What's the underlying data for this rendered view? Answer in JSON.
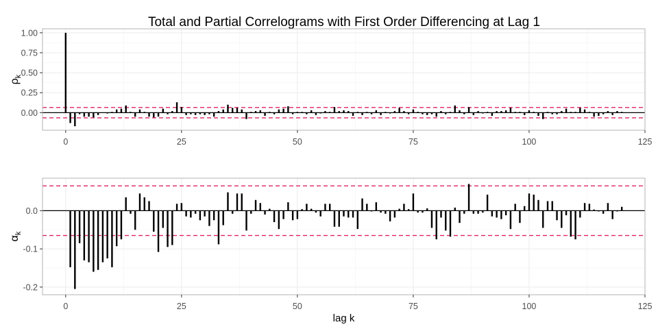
{
  "title": "Total and Partial Correlograms with First Order Differencing at Lag 1",
  "colors": {
    "bar": "#000000",
    "band": "#e0245e",
    "zero": "#000000",
    "grid": "#ebebeb",
    "panel_border": "#b3b3b3",
    "text": "#4d4d4d",
    "title": "#000000"
  },
  "chart_data": [
    {
      "type": "bar",
      "panel": "top",
      "ylabel": "ρ",
      "ylabel_sub": "k",
      "xlabel": "",
      "xlim": [
        -5,
        125
      ],
      "ylim": [
        -0.22,
        1.05
      ],
      "xticks": [
        0,
        25,
        50,
        75,
        100,
        125
      ],
      "yticks": [
        0.0,
        0.25,
        0.5,
        0.75,
        1.0
      ],
      "ytick_labels": [
        "0.00",
        "0.25",
        "0.50",
        "0.75",
        "1.00"
      ],
      "band": 0.065,
      "grid": true,
      "x": [
        0,
        1,
        2,
        3,
        4,
        5,
        6,
        7,
        8,
        9,
        10,
        11,
        12,
        13,
        14,
        15,
        16,
        17,
        18,
        19,
        20,
        21,
        22,
        23,
        24,
        25,
        26,
        27,
        28,
        29,
        30,
        31,
        32,
        33,
        34,
        35,
        36,
        37,
        38,
        39,
        40,
        41,
        42,
        43,
        44,
        45,
        46,
        47,
        48,
        49,
        50,
        51,
        52,
        53,
        54,
        55,
        56,
        57,
        58,
        59,
        60,
        61,
        62,
        63,
        64,
        65,
        66,
        67,
        68,
        69,
        70,
        71,
        72,
        73,
        74,
        75,
        76,
        77,
        78,
        79,
        80,
        81,
        82,
        83,
        84,
        85,
        86,
        87,
        88,
        89,
        90,
        91,
        92,
        93,
        94,
        95,
        96,
        97,
        98,
        99,
        100,
        101,
        102,
        103,
        104,
        105,
        106,
        107,
        108,
        109,
        110,
        111,
        112,
        113,
        114,
        115,
        116,
        117,
        118,
        119,
        120
      ],
      "values": [
        1.0,
        -0.13,
        -0.17,
        -0.02,
        -0.05,
        -0.05,
        -0.06,
        -0.03,
        0.0,
        -0.01,
        0.01,
        0.04,
        0.05,
        0.09,
        0.01,
        -0.05,
        0.04,
        0.01,
        -0.05,
        -0.06,
        -0.05,
        0.05,
        -0.02,
        0.02,
        0.13,
        0.07,
        -0.03,
        -0.02,
        -0.03,
        -0.02,
        -0.03,
        -0.02,
        -0.05,
        0.02,
        0.04,
        0.1,
        0.06,
        0.06,
        0.04,
        -0.08,
        0.01,
        0.02,
        0.03,
        -0.04,
        0.01,
        -0.02,
        0.04,
        0.05,
        0.08,
        -0.02,
        0.01,
        0.01,
        -0.02,
        0.03,
        -0.03,
        -0.01,
        0.02,
        0.01,
        0.07,
        0.02,
        0.03,
        0.02,
        -0.04,
        0.01,
        -0.03,
        0.01,
        -0.02,
        0.03,
        -0.03,
        0.01,
        -0.01,
        0.02,
        0.06,
        0.02,
        -0.02,
        0.04,
        0.01,
        -0.02,
        -0.03,
        -0.02,
        -0.05,
        0.02,
        -0.02,
        0.01,
        0.09,
        0.03,
        -0.02,
        0.07,
        -0.03,
        0.02,
        -0.01,
        0.01,
        -0.04,
        0.02,
        0.02,
        0.03,
        0.06,
        0.01,
        0.01,
        -0.03,
        0.03,
        0.01,
        -0.04,
        -0.08,
        0.01,
        -0.02,
        -0.02,
        0.02,
        0.05,
        0.01,
        0.01,
        0.06,
        0.04,
        0.01,
        -0.05,
        -0.04,
        -0.02,
        0.02,
        -0.03,
        0.02,
        0.01
      ]
    },
    {
      "type": "bar",
      "panel": "bottom",
      "ylabel": "α",
      "ylabel_sub": "k",
      "xlabel": "lag k",
      "xlim": [
        -5,
        125
      ],
      "ylim": [
        -0.22,
        0.085
      ],
      "xticks": [
        0,
        25,
        50,
        75,
        100,
        125
      ],
      "yticks": [
        -0.2,
        -0.1,
        0.0
      ],
      "ytick_labels": [
        "-0.2",
        "-0.1",
        "0.0"
      ],
      "band": 0.065,
      "grid": true,
      "x": [
        1,
        2,
        3,
        4,
        5,
        6,
        7,
        8,
        9,
        10,
        11,
        12,
        13,
        14,
        15,
        16,
        17,
        18,
        19,
        20,
        21,
        22,
        23,
        24,
        25,
        26,
        27,
        28,
        29,
        30,
        31,
        32,
        33,
        34,
        35,
        36,
        37,
        38,
        39,
        40,
        41,
        42,
        43,
        44,
        45,
        46,
        47,
        48,
        49,
        50,
        51,
        52,
        53,
        54,
        55,
        56,
        57,
        58,
        59,
        60,
        61,
        62,
        63,
        64,
        65,
        66,
        67,
        68,
        69,
        70,
        71,
        72,
        73,
        74,
        75,
        76,
        77,
        78,
        79,
        80,
        81,
        82,
        83,
        84,
        85,
        86,
        87,
        88,
        89,
        90,
        91,
        92,
        93,
        94,
        95,
        96,
        97,
        98,
        99,
        100,
        101,
        102,
        103,
        104,
        105,
        106,
        107,
        108,
        109,
        110,
        111,
        112,
        113,
        114,
        115,
        116,
        117,
        118,
        119,
        120
      ],
      "values": [
        -0.148,
        -0.205,
        -0.085,
        -0.13,
        -0.135,
        -0.16,
        -0.155,
        -0.135,
        -0.125,
        -0.148,
        -0.093,
        -0.075,
        0.035,
        -0.008,
        -0.05,
        0.045,
        0.035,
        0.025,
        -0.055,
        -0.108,
        -0.045,
        -0.095,
        -0.09,
        0.018,
        0.02,
        -0.015,
        -0.018,
        -0.008,
        -0.025,
        -0.015,
        -0.04,
        -0.025,
        -0.088,
        -0.038,
        0.048,
        -0.008,
        0.045,
        0.045,
        -0.052,
        -0.008,
        0.028,
        0.02,
        -0.01,
        0.005,
        -0.03,
        -0.048,
        -0.022,
        0.022,
        -0.025,
        -0.022,
        0.004,
        0.018,
        0.005,
        -0.005,
        -0.015,
        0.018,
        0.018,
        -0.042,
        -0.042,
        -0.015,
        -0.018,
        -0.018,
        -0.048,
        0.032,
        0.018,
        -0.002,
        0.022,
        -0.005,
        -0.008,
        -0.028,
        -0.018,
        0.005,
        0.018,
        0.004,
        0.045,
        -0.005,
        -0.005,
        0.006,
        -0.045,
        -0.075,
        -0.018,
        -0.052,
        -0.068,
        0.008,
        -0.032,
        -0.008,
        0.07,
        -0.008,
        -0.008,
        -0.005,
        0.042,
        -0.015,
        -0.018,
        -0.022,
        -0.012,
        -0.048,
        0.018,
        -0.032,
        0.012,
        0.045,
        0.042,
        0.028,
        -0.045,
        0.025,
        0.025,
        -0.025,
        -0.045,
        -0.012,
        -0.068,
        -0.075,
        -0.018,
        0.02,
        0.018,
        0.003,
        -0.002,
        -0.008,
        0.02,
        -0.022,
        -0.002,
        0.01
      ]
    }
  ]
}
